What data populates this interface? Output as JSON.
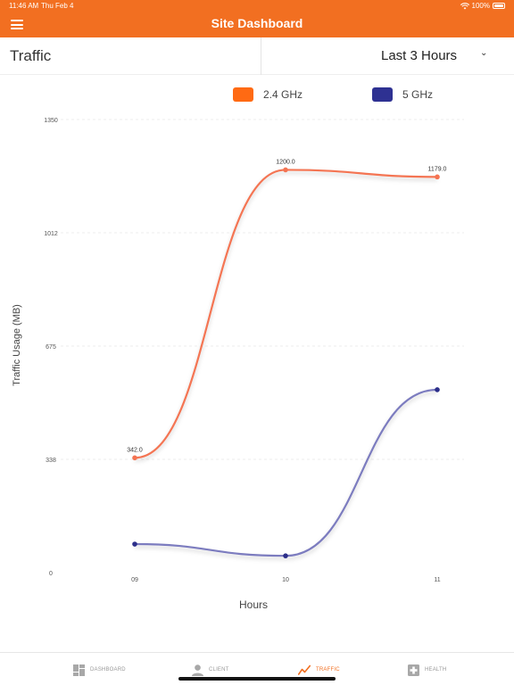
{
  "status_bar": {
    "time": "11:46 AM",
    "date": "Thu Feb 4",
    "battery": "100%"
  },
  "nav": {
    "title": "Site Dashboard"
  },
  "header": {
    "section_title": "Traffic",
    "range_selected": "Last 3 Hours"
  },
  "colors": {
    "accent": "#f26f21",
    "series_24": "#f47453",
    "series_5": "#7c7cbf",
    "point_5": "#2c2f8a",
    "swatch_24": "#ff6a13",
    "swatch_5": "#2e3192"
  },
  "chart_data": {
    "type": "line",
    "categories": [
      "09",
      "10",
      "11"
    ],
    "series": [
      {
        "name": "2.4 GHz",
        "values": [
          342.0,
          1200.0,
          1179.0
        ],
        "labels": [
          "342.0",
          "1200.0",
          "1179.0"
        ]
      },
      {
        "name": "5 GHz",
        "values": [
          85,
          50,
          545
        ]
      }
    ],
    "ylabel": "Traffic Usage (MB)",
    "xlabel": "Hours",
    "ylim": [
      0,
      1350
    ],
    "yticks": [
      "0",
      "338",
      "675",
      "1012",
      "1350"
    ],
    "grid": true
  },
  "tabs": [
    {
      "label": "DASHBOARD",
      "icon": "dashboard-icon",
      "active": false
    },
    {
      "label": "CLIENT",
      "icon": "user-icon",
      "active": false
    },
    {
      "label": "TRAFFIC",
      "icon": "trend-icon",
      "active": true
    },
    {
      "label": "HEALTH",
      "icon": "health-plus-icon",
      "active": false
    }
  ]
}
